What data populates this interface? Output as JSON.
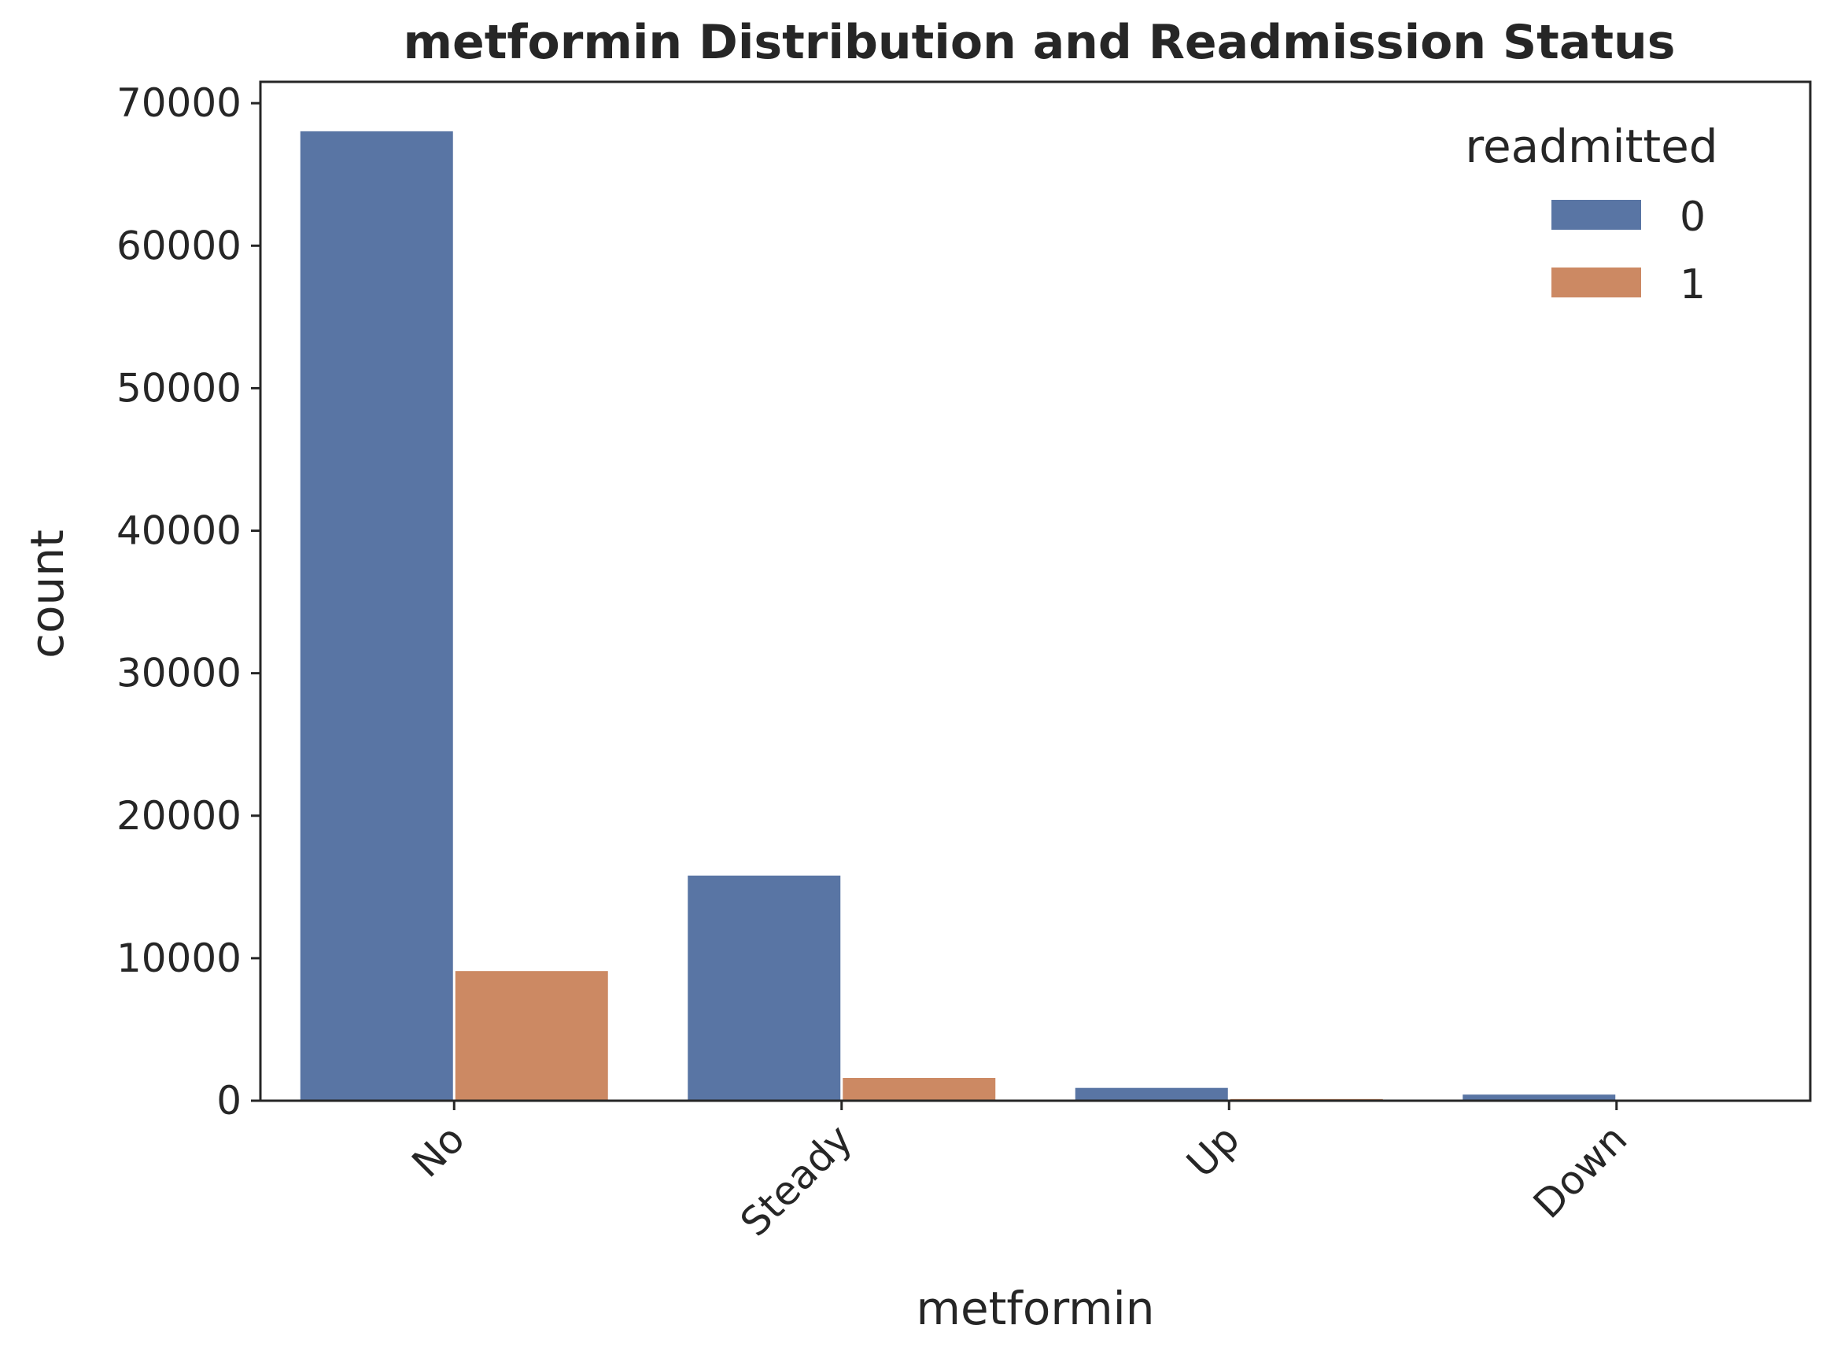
{
  "chart_data": {
    "type": "bar",
    "title": "metformin Distribution and Readmission Status",
    "xlabel": "metformin",
    "ylabel": "count",
    "categories": [
      "No",
      "Steady",
      "Up",
      "Down"
    ],
    "series": [
      {
        "name": "0",
        "color": "#5975a4",
        "values": [
          68030,
          15800,
          900,
          430
        ]
      },
      {
        "name": "1",
        "color": "#cc8963",
        "values": [
          9100,
          1600,
          120,
          60
        ]
      }
    ],
    "ylim": [
      0,
      71500
    ],
    "yticks": [
      0,
      10000,
      20000,
      30000,
      40000,
      50000,
      60000,
      70000
    ],
    "ytick_labels": [
      "0",
      "10000",
      "20000",
      "30000",
      "40000",
      "50000",
      "60000",
      "70000"
    ],
    "legend": {
      "title": "readmitted",
      "position": "top-right"
    },
    "grid": false
  }
}
